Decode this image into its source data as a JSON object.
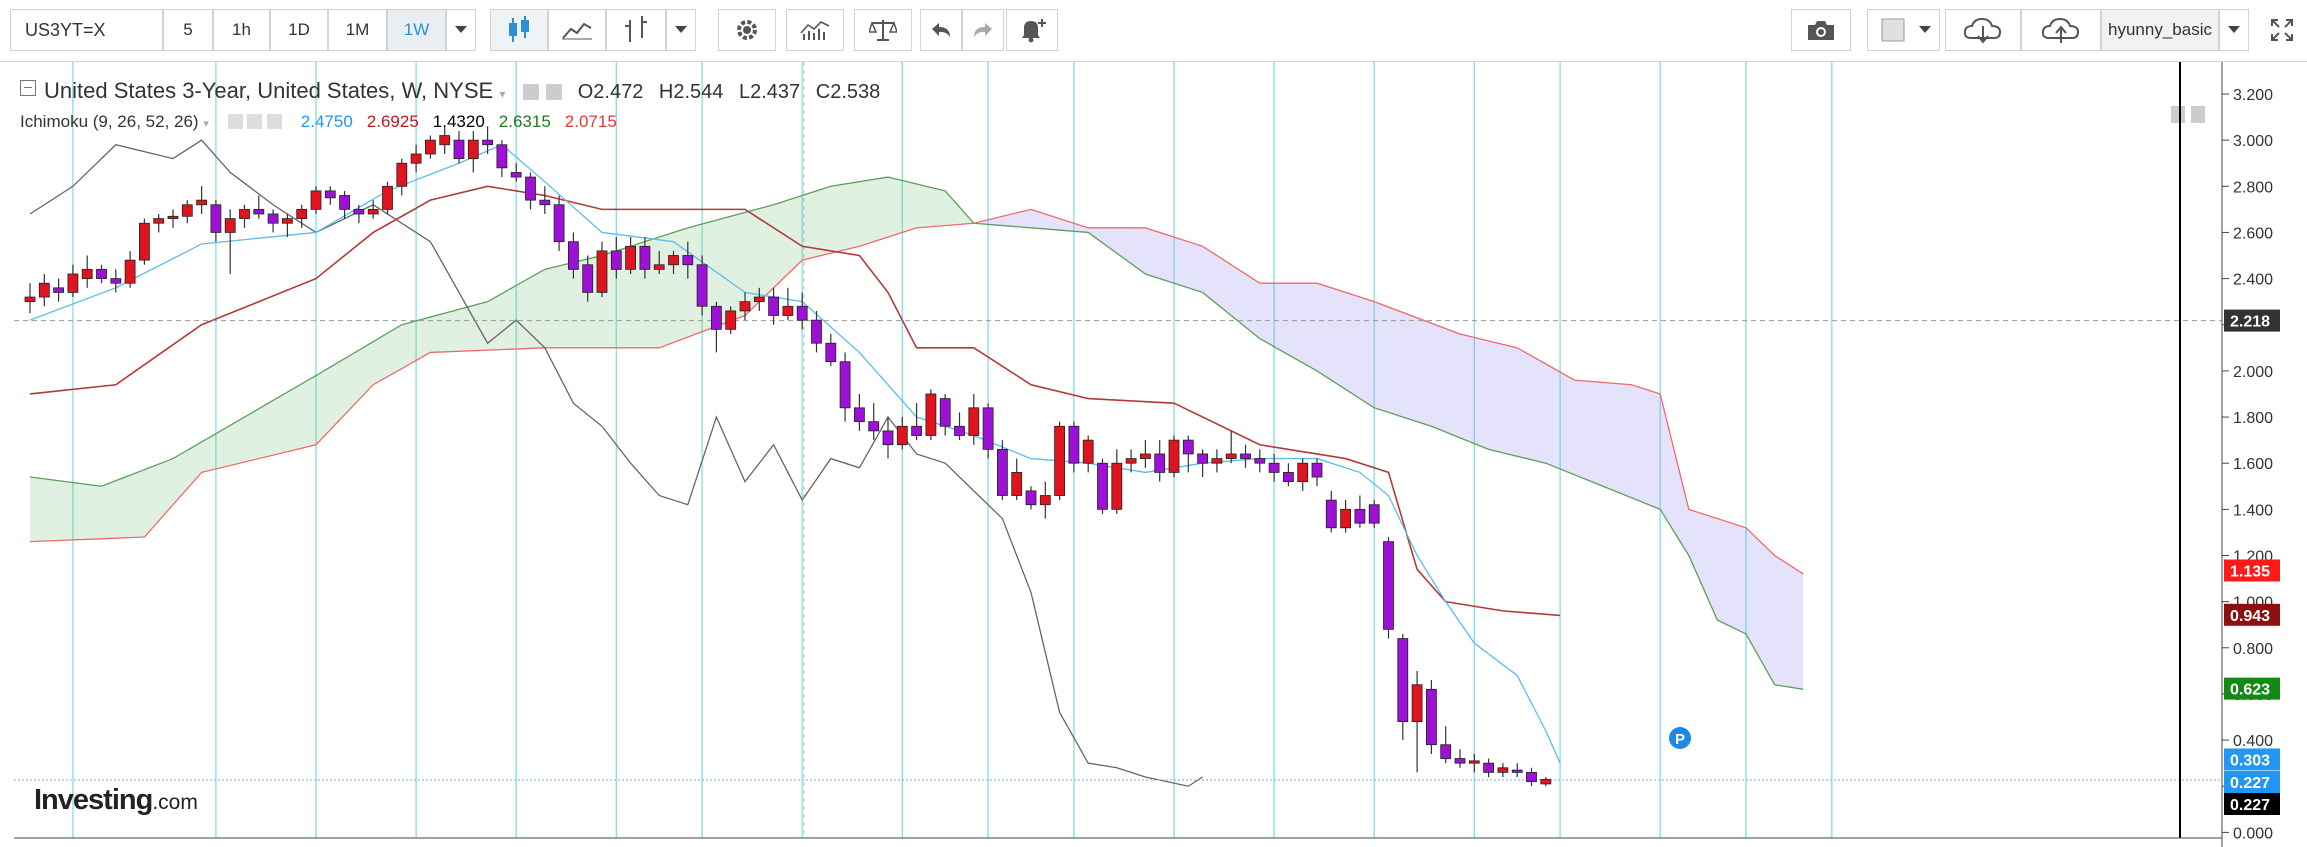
{
  "toolbar": {
    "symbol": "US3YT=X",
    "intervals": [
      "5",
      "1h",
      "1D",
      "1M",
      "1W"
    ],
    "active_interval": "1W",
    "user": "hyunny_basic"
  },
  "legend": {
    "instrument": "United States 3-Year, United States, W, NYSE",
    "open_label": "O",
    "open": "2.472",
    "high_label": "H",
    "high": "2.544",
    "low_label": "L",
    "low": "2.437",
    "close_label": "C",
    "close": "2.538",
    "indicator": "Ichimoku (9, 26, 52, 26)",
    "indicator_values": [
      "2.4750",
      "2.6925",
      "1.4320",
      "2.6315",
      "2.0715"
    ],
    "indicator_colors": [
      "#2196f3",
      "#b71c1c",
      "#000000",
      "#1e7b1e",
      "#e53935"
    ]
  },
  "logo": {
    "main": "Investing",
    "suffix": ".com"
  },
  "marker": {
    "label": "P"
  },
  "chart_data": {
    "type": "candlestick",
    "ylim": [
      0.0,
      3.3
    ],
    "y_ticks": [
      "3.200",
      "3.000",
      "2.800",
      "2.600",
      "2.400",
      "2.200",
      "2.000",
      "1.800",
      "1.600",
      "1.400",
      "1.200",
      "1.000",
      "0.800",
      "0.600",
      "0.400",
      "0.200",
      "0.000"
    ],
    "price_labels": [
      {
        "value": "2.218",
        "color": "#333333"
      },
      {
        "value": "1.135",
        "color": "#ff1a1a"
      },
      {
        "value": "0.943",
        "color": "#8b1010"
      },
      {
        "value": "0.623",
        "color": "#138a13"
      },
      {
        "value": "0.303",
        "color": "#2196f3"
      },
      {
        "value": "0.227",
        "color": "#2196f3"
      },
      {
        "value": "0.227",
        "color": "#000000"
      }
    ],
    "price_line": 2.218,
    "last_line": 0.227,
    "candles": [
      [
        2.3,
        2.38,
        2.25,
        2.32
      ],
      [
        2.32,
        2.42,
        2.28,
        2.38
      ],
      [
        2.36,
        2.4,
        2.3,
        2.34
      ],
      [
        2.34,
        2.46,
        2.32,
        2.42
      ],
      [
        2.4,
        2.5,
        2.36,
        2.44
      ],
      [
        2.44,
        2.46,
        2.38,
        2.4
      ],
      [
        2.4,
        2.44,
        2.34,
        2.38
      ],
      [
        2.38,
        2.52,
        2.36,
        2.48
      ],
      [
        2.48,
        2.66,
        2.46,
        2.64
      ],
      [
        2.64,
        2.68,
        2.6,
        2.66
      ],
      [
        2.66,
        2.7,
        2.62,
        2.67
      ],
      [
        2.67,
        2.74,
        2.64,
        2.72
      ],
      [
        2.72,
        2.8,
        2.68,
        2.74
      ],
      [
        2.72,
        2.74,
        2.56,
        2.6
      ],
      [
        2.6,
        2.7,
        2.42,
        2.66
      ],
      [
        2.66,
        2.72,
        2.62,
        2.7
      ],
      [
        2.7,
        2.76,
        2.66,
        2.68
      ],
      [
        2.68,
        2.7,
        2.6,
        2.64
      ],
      [
        2.64,
        2.68,
        2.58,
        2.66
      ],
      [
        2.66,
        2.72,
        2.62,
        2.7
      ],
      [
        2.7,
        2.8,
        2.68,
        2.78
      ],
      [
        2.78,
        2.8,
        2.72,
        2.75
      ],
      [
        2.76,
        2.78,
        2.66,
        2.7
      ],
      [
        2.7,
        2.72,
        2.64,
        2.68
      ],
      [
        2.68,
        2.74,
        2.66,
        2.7
      ],
      [
        2.7,
        2.82,
        2.68,
        2.8
      ],
      [
        2.8,
        2.92,
        2.76,
        2.9
      ],
      [
        2.9,
        2.98,
        2.86,
        2.94
      ],
      [
        2.94,
        3.02,
        2.92,
        3.0
      ],
      [
        2.98,
        3.06,
        2.94,
        3.02
      ],
      [
        3.0,
        3.04,
        2.9,
        2.92
      ],
      [
        2.92,
        3.04,
        2.86,
        3.0
      ],
      [
        3.0,
        3.06,
        2.94,
        2.98
      ],
      [
        2.98,
        3.0,
        2.84,
        2.88
      ],
      [
        2.86,
        2.9,
        2.82,
        2.84
      ],
      [
        2.84,
        2.86,
        2.7,
        2.74
      ],
      [
        2.74,
        2.8,
        2.68,
        2.72
      ],
      [
        2.72,
        2.76,
        2.52,
        2.56
      ],
      [
        2.56,
        2.6,
        2.4,
        2.44
      ],
      [
        2.46,
        2.5,
        2.3,
        2.34
      ],
      [
        2.34,
        2.56,
        2.32,
        2.52
      ],
      [
        2.52,
        2.58,
        2.4,
        2.44
      ],
      [
        2.44,
        2.58,
        2.42,
        2.54
      ],
      [
        2.54,
        2.58,
        2.4,
        2.44
      ],
      [
        2.44,
        2.52,
        2.42,
        2.46
      ],
      [
        2.46,
        2.52,
        2.42,
        2.5
      ],
      [
        2.5,
        2.56,
        2.4,
        2.46
      ],
      [
        2.46,
        2.5,
        2.24,
        2.28
      ],
      [
        2.28,
        2.3,
        2.08,
        2.18
      ],
      [
        2.18,
        2.28,
        2.16,
        2.26
      ],
      [
        2.26,
        2.34,
        2.22,
        2.3
      ],
      [
        2.3,
        2.36,
        2.26,
        2.32
      ],
      [
        2.32,
        2.36,
        2.2,
        2.24
      ],
      [
        2.24,
        2.36,
        2.22,
        2.28
      ],
      [
        2.28,
        2.34,
        2.18,
        2.22
      ],
      [
        2.22,
        2.26,
        2.08,
        2.12
      ],
      [
        2.12,
        2.16,
        2.02,
        2.04
      ],
      [
        2.04,
        2.08,
        1.78,
        1.84
      ],
      [
        1.84,
        1.9,
        1.74,
        1.78
      ],
      [
        1.78,
        1.86,
        1.7,
        1.74
      ],
      [
        1.74,
        1.8,
        1.62,
        1.68
      ],
      [
        1.68,
        1.8,
        1.66,
        1.76
      ],
      [
        1.76,
        1.86,
        1.7,
        1.72
      ],
      [
        1.72,
        1.92,
        1.7,
        1.9
      ],
      [
        1.88,
        1.9,
        1.72,
        1.76
      ],
      [
        1.76,
        1.82,
        1.7,
        1.72
      ],
      [
        1.72,
        1.9,
        1.68,
        1.84
      ],
      [
        1.84,
        1.86,
        1.62,
        1.66
      ],
      [
        1.66,
        1.7,
        1.44,
        1.46
      ],
      [
        1.46,
        1.62,
        1.44,
        1.56
      ],
      [
        1.48,
        1.5,
        1.4,
        1.42
      ],
      [
        1.42,
        1.52,
        1.36,
        1.46
      ],
      [
        1.46,
        1.78,
        1.44,
        1.76
      ],
      [
        1.76,
        1.78,
        1.56,
        1.6
      ],
      [
        1.6,
        1.72,
        1.56,
        1.7
      ],
      [
        1.6,
        1.62,
        1.38,
        1.4
      ],
      [
        1.4,
        1.66,
        1.38,
        1.6
      ],
      [
        1.6,
        1.66,
        1.56,
        1.62
      ],
      [
        1.62,
        1.7,
        1.58,
        1.64
      ],
      [
        1.64,
        1.7,
        1.52,
        1.56
      ],
      [
        1.56,
        1.72,
        1.54,
        1.7
      ],
      [
        1.7,
        1.72,
        1.56,
        1.64
      ],
      [
        1.64,
        1.66,
        1.54,
        1.6
      ],
      [
        1.6,
        1.66,
        1.56,
        1.62
      ],
      [
        1.62,
        1.74,
        1.6,
        1.64
      ],
      [
        1.64,
        1.68,
        1.58,
        1.62
      ],
      [
        1.62,
        1.66,
        1.56,
        1.6
      ],
      [
        1.6,
        1.64,
        1.52,
        1.56
      ],
      [
        1.56,
        1.6,
        1.5,
        1.52
      ],
      [
        1.52,
        1.62,
        1.48,
        1.6
      ],
      [
        1.6,
        1.62,
        1.5,
        1.54
      ],
      [
        1.44,
        1.48,
        1.3,
        1.32
      ],
      [
        1.32,
        1.44,
        1.3,
        1.4
      ],
      [
        1.4,
        1.46,
        1.32,
        1.34
      ],
      [
        1.42,
        1.44,
        1.32,
        1.34
      ],
      [
        1.26,
        1.28,
        0.84,
        0.88
      ],
      [
        0.84,
        0.86,
        0.4,
        0.48
      ],
      [
        0.48,
        0.7,
        0.26,
        0.64
      ],
      [
        0.62,
        0.66,
        0.34,
        0.38
      ],
      [
        0.38,
        0.46,
        0.3,
        0.32
      ],
      [
        0.32,
        0.36,
        0.28,
        0.3
      ],
      [
        0.3,
        0.34,
        0.26,
        0.31
      ],
      [
        0.3,
        0.32,
        0.24,
        0.26
      ],
      [
        0.26,
        0.3,
        0.24,
        0.28
      ],
      [
        0.27,
        0.3,
        0.24,
        0.26
      ],
      [
        0.26,
        0.28,
        0.2,
        0.22
      ],
      [
        0.21,
        0.24,
        0.2,
        0.23
      ]
    ],
    "conversion_line": [
      [
        0,
        2.22
      ],
      [
        6,
        2.36
      ],
      [
        12,
        2.55
      ],
      [
        20,
        2.6
      ],
      [
        25,
        2.78
      ],
      [
        30,
        2.9
      ],
      [
        33,
        2.98
      ],
      [
        36,
        2.82
      ],
      [
        40,
        2.6
      ],
      [
        45,
        2.56
      ],
      [
        50,
        2.34
      ],
      [
        54,
        2.3
      ],
      [
        58,
        2.08
      ],
      [
        62,
        1.8
      ],
      [
        66,
        1.72
      ],
      [
        70,
        1.62
      ],
      [
        74,
        1.6
      ],
      [
        78,
        1.56
      ],
      [
        82,
        1.6
      ],
      [
        86,
        1.62
      ],
      [
        90,
        1.62
      ],
      [
        93,
        1.56
      ],
      [
        95,
        1.46
      ],
      [
        97,
        1.2
      ],
      [
        99,
        1.0
      ],
      [
        101,
        0.82
      ],
      [
        104,
        0.68
      ],
      [
        106,
        0.44
      ],
      [
        107,
        0.3
      ]
    ],
    "base_line": [
      [
        0,
        1.9
      ],
      [
        6,
        1.94
      ],
      [
        12,
        2.2
      ],
      [
        20,
        2.4
      ],
      [
        24,
        2.6
      ],
      [
        28,
        2.74
      ],
      [
        32,
        2.8
      ],
      [
        36,
        2.76
      ],
      [
        40,
        2.7
      ],
      [
        50,
        2.7
      ],
      [
        54,
        2.54
      ],
      [
        58,
        2.5
      ],
      [
        60,
        2.34
      ],
      [
        62,
        2.1
      ],
      [
        66,
        2.1
      ],
      [
        70,
        1.94
      ],
      [
        74,
        1.88
      ],
      [
        80,
        1.86
      ],
      [
        86,
        1.68
      ],
      [
        92,
        1.62
      ],
      [
        95,
        1.56
      ],
      [
        97,
        1.14
      ],
      [
        99,
        1.0
      ],
      [
        103,
        0.96
      ],
      [
        107,
        0.94
      ]
    ],
    "lagging_line": [
      [
        0,
        2.68
      ],
      [
        3,
        2.8
      ],
      [
        6,
        2.98
      ],
      [
        10,
        2.92
      ],
      [
        12,
        3.0
      ],
      [
        14,
        2.86
      ],
      [
        17,
        2.72
      ],
      [
        20,
        2.6
      ],
      [
        24,
        2.72
      ],
      [
        28,
        2.56
      ],
      [
        32,
        2.12
      ],
      [
        34,
        2.22
      ],
      [
        36,
        2.1
      ],
      [
        38,
        1.86
      ],
      [
        40,
        1.76
      ],
      [
        42,
        1.6
      ],
      [
        44,
        1.46
      ],
      [
        46,
        1.42
      ],
      [
        48,
        1.8
      ],
      [
        50,
        1.52
      ],
      [
        52,
        1.68
      ],
      [
        54,
        1.44
      ],
      [
        56,
        1.62
      ],
      [
        58,
        1.58
      ],
      [
        60,
        1.8
      ],
      [
        62,
        1.64
      ],
      [
        64,
        1.6
      ],
      [
        66,
        1.48
      ],
      [
        68,
        1.36
      ],
      [
        70,
        1.04
      ],
      [
        72,
        0.52
      ],
      [
        74,
        0.3
      ],
      [
        76,
        0.28
      ],
      [
        78,
        0.24
      ],
      [
        81,
        0.2
      ],
      [
        82,
        0.24
      ]
    ],
    "leading_span_a": [
      [
        0,
        1.54
      ],
      [
        5,
        1.5
      ],
      [
        10,
        1.62
      ],
      [
        15,
        1.8
      ],
      [
        20,
        1.98
      ],
      [
        26,
        2.2
      ],
      [
        32,
        2.3
      ],
      [
        36,
        2.44
      ],
      [
        40,
        2.5
      ],
      [
        46,
        2.62
      ],
      [
        52,
        2.72
      ],
      [
        56,
        2.8
      ],
      [
        60,
        2.84
      ],
      [
        64,
        2.78
      ],
      [
        66,
        2.64
      ],
      [
        70,
        2.62
      ],
      [
        74,
        2.6
      ],
      [
        78,
        2.42
      ],
      [
        82,
        2.34
      ],
      [
        86,
        2.14
      ],
      [
        90,
        2.0
      ],
      [
        94,
        1.84
      ],
      [
        98,
        1.76
      ],
      [
        102,
        1.66
      ],
      [
        106,
        1.6
      ],
      [
        110,
        1.5
      ],
      [
        114,
        1.4
      ],
      [
        116,
        1.2
      ],
      [
        118,
        0.92
      ],
      [
        120,
        0.86
      ],
      [
        122,
        0.64
      ],
      [
        124,
        0.62
      ]
    ],
    "leading_span_b": [
      [
        0,
        1.26
      ],
      [
        8,
        1.28
      ],
      [
        12,
        1.56
      ],
      [
        20,
        1.68
      ],
      [
        24,
        1.94
      ],
      [
        28,
        2.08
      ],
      [
        36,
        2.1
      ],
      [
        44,
        2.1
      ],
      [
        50,
        2.24
      ],
      [
        54,
        2.48
      ],
      [
        58,
        2.54
      ],
      [
        62,
        2.62
      ],
      [
        66,
        2.64
      ],
      [
        70,
        2.7
      ],
      [
        74,
        2.62
      ],
      [
        78,
        2.62
      ],
      [
        82,
        2.54
      ],
      [
        86,
        2.38
      ],
      [
        90,
        2.38
      ],
      [
        94,
        2.3
      ],
      [
        100,
        2.16
      ],
      [
        104,
        2.1
      ],
      [
        108,
        1.96
      ],
      [
        112,
        1.94
      ],
      [
        114,
        1.9
      ],
      [
        116,
        1.4
      ],
      [
        120,
        1.32
      ],
      [
        122,
        1.2
      ],
      [
        124,
        1.12
      ]
    ],
    "vertical_grid_index": [
      3,
      13,
      20,
      27,
      34,
      41,
      47,
      54,
      61,
      67,
      73,
      80,
      87,
      94,
      101,
      107,
      114,
      120,
      126
    ]
  }
}
